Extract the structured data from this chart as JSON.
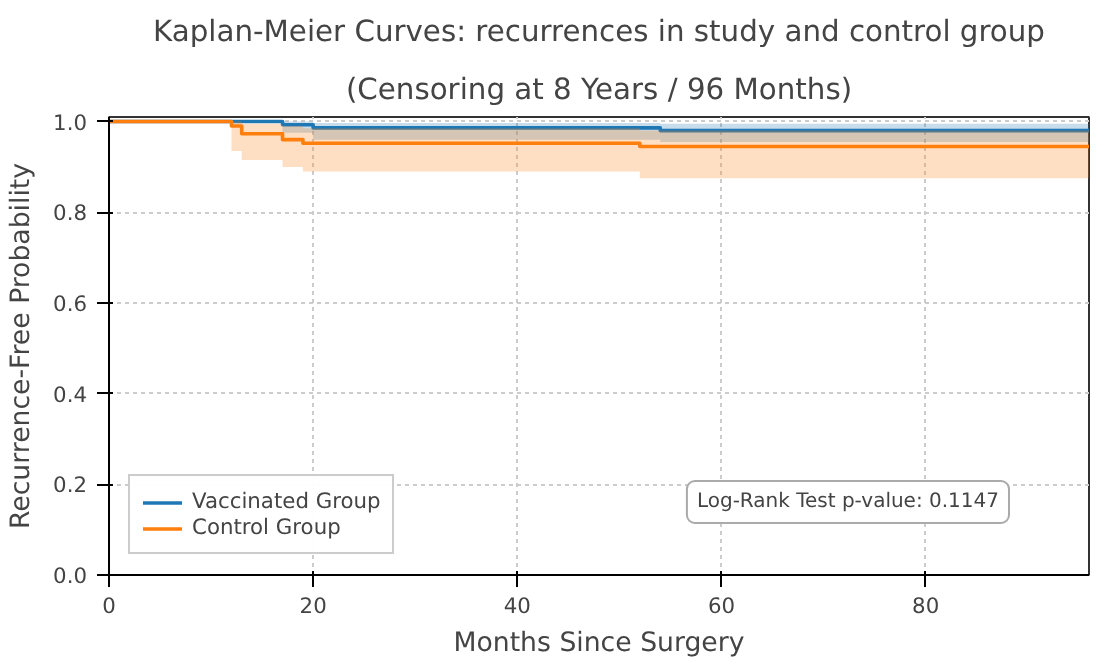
{
  "chart_data": {
    "type": "step",
    "title": "Kaplan-Meier Curves: recurrences in study and control group",
    "subtitle": "(Censoring at 8 Years / 96 Months)",
    "xlabel": "Months Since Surgery",
    "ylabel": "Recurrence-Free Probability",
    "series": [
      {
        "name": "Vaccinated Group",
        "color": "#1f77b4",
        "x": [
          0,
          17,
          20,
          54,
          96
        ],
        "values": [
          1.0,
          0.993,
          0.986,
          0.98,
          0.98
        ],
        "lower": [
          1.0,
          0.975,
          0.96,
          0.955,
          0.955
        ],
        "upper": [
          1.0,
          1.0,
          0.997,
          0.995,
          0.995
        ]
      },
      {
        "name": "Control Group",
        "color": "#ff7f0e",
        "x": [
          0,
          12,
          13,
          17,
          19,
          52,
          96
        ],
        "values": [
          1.0,
          0.99,
          0.973,
          0.96,
          0.952,
          0.945,
          0.945
        ],
        "lower": [
          1.0,
          0.935,
          0.915,
          0.9,
          0.89,
          0.875,
          0.875
        ],
        "upper": [
          1.0,
          1.0,
          0.995,
          0.99,
          0.985,
          0.98,
          0.98
        ]
      }
    ],
    "xlim": [
      0,
      96
    ],
    "ylim": [
      0,
      1.01
    ],
    "xticks": [
      0,
      20,
      40,
      60,
      80
    ],
    "yticks": [
      {
        "value": 0,
        "label": "0.0"
      },
      0.2,
      0.4,
      0.6,
      0.8,
      {
        "value": 1,
        "label": "1.0"
      }
    ],
    "annotations": [
      "Log-Rank Test p-value: 0.1147"
    ],
    "grid": true,
    "legend": "bottom left",
    "line_style": "solid"
  }
}
